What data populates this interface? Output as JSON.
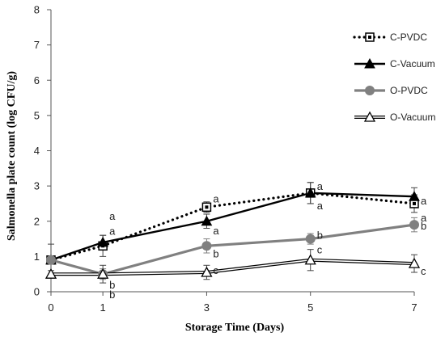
{
  "chart_data": {
    "type": "line",
    "xlabel": "Storage Time  (Days)",
    "ylabel": "Salmonella plate count (log CFU/g)",
    "x": [
      0,
      1,
      3,
      5,
      7
    ],
    "xlim": [
      0,
      7
    ],
    "ylim": [
      0,
      8
    ],
    "xticks": [
      "0",
      "1",
      "3",
      "5",
      "7"
    ],
    "yticks": [
      "0",
      "1",
      "2",
      "3",
      "4",
      "5",
      "6",
      "7",
      "8"
    ],
    "grid": false,
    "legend_position": "top-right",
    "series": [
      {
        "name": "C-PVDC",
        "values": [
          0.9,
          1.3,
          2.4,
          2.8,
          2.5
        ],
        "errors": [
          0.45,
          0.3,
          0.15,
          0.3,
          0.25
        ],
        "letters": [
          "",
          "a",
          "a",
          "a",
          "a"
        ],
        "color": "#000000",
        "style": "dotted",
        "marker": "square-open"
      },
      {
        "name": "C-Vacuum",
        "values": [
          0.9,
          1.4,
          2.0,
          2.8,
          2.7
        ],
        "errors": [
          0.1,
          0.2,
          0.2,
          0.3,
          0.25
        ],
        "letters": [
          "",
          "a",
          "a",
          "a",
          "a"
        ],
        "color": "#000000",
        "style": "solid",
        "marker": "triangle-filled"
      },
      {
        "name": "O-PVDC",
        "values": [
          0.9,
          0.5,
          1.3,
          1.5,
          1.9
        ],
        "errors": [
          0.1,
          0.15,
          0.2,
          0.15,
          0.2
        ],
        "letters": [
          "",
          "b",
          "b",
          "b",
          "b"
        ],
        "color": "#808080",
        "style": "solid",
        "marker": "circle-filled"
      },
      {
        "name": "O-Vacuum",
        "values": [
          0.5,
          0.5,
          0.55,
          0.9,
          0.8
        ],
        "errors": [
          0.1,
          0.25,
          0.2,
          0.3,
          0.25
        ],
        "letters": [
          "",
          "b",
          "c",
          "c",
          "c"
        ],
        "color": "#000000",
        "style": "double",
        "marker": "triangle-open"
      }
    ]
  }
}
